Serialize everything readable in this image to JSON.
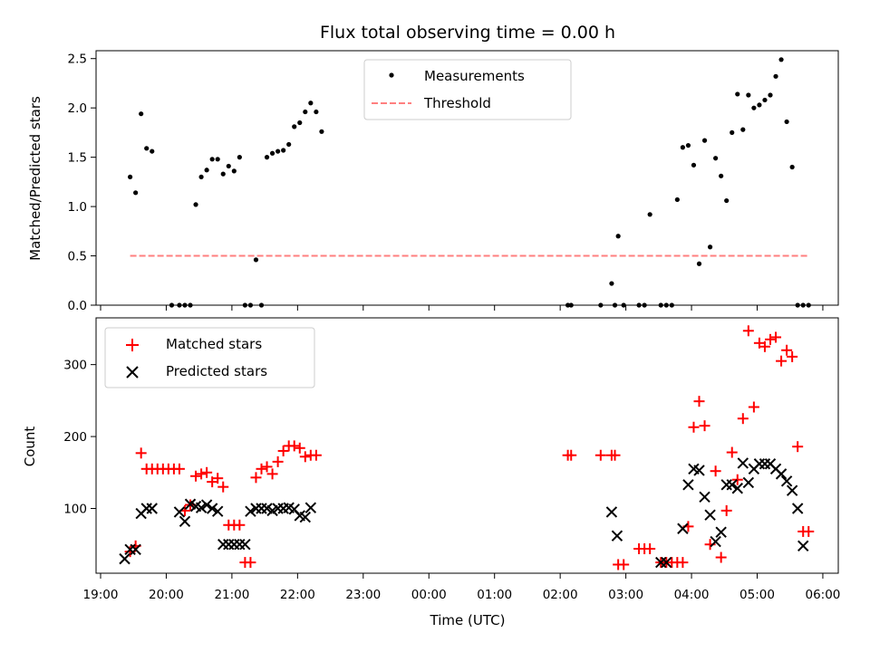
{
  "chart_data": [
    {
      "type": "scatter",
      "title": "Flux total observing time = 0.00 h",
      "xlabel": "",
      "ylabel": "Matched/Predicted stars",
      "ylim": [
        0,
        2.58
      ],
      "yticks": [
        "0.0",
        "0.5",
        "1.0",
        "1.5",
        "2.0",
        "2.5"
      ],
      "ytick_values": [
        0,
        0.5,
        1.0,
        1.5,
        2.0,
        2.5
      ],
      "legend_position": "upper center",
      "series": [
        {
          "name": "Measurements",
          "marker": "dot",
          "color": "#000000",
          "x": [
            "19:27",
            "19:32",
            "19:37",
            "19:42",
            "19:47",
            "20:05",
            "20:12",
            "20:17",
            "20:22",
            "20:27",
            "20:32",
            "20:37",
            "20:42",
            "20:47",
            "20:52",
            "20:57",
            "21:02",
            "21:07",
            "21:12",
            "21:17",
            "21:22",
            "21:27",
            "21:32",
            "21:37",
            "21:42",
            "21:47",
            "21:52",
            "21:57",
            "22:02",
            "22:07",
            "22:12",
            "22:17",
            "22:22",
            "02:07",
            "02:10",
            "02:37",
            "02:47",
            "02:50",
            "02:53",
            "02:58",
            "03:12",
            "03:17",
            "03:22",
            "03:32",
            "03:37",
            "03:42",
            "03:47",
            "03:52",
            "03:57",
            "04:02",
            "04:07",
            "04:12",
            "04:17",
            "04:22",
            "04:27",
            "04:32",
            "04:37",
            "04:42",
            "04:47",
            "04:52",
            "04:57",
            "05:02",
            "05:07",
            "05:12",
            "05:17",
            "05:22",
            "05:27",
            "05:32",
            "05:37",
            "05:42",
            "05:47"
          ],
          "y": [
            1.3,
            1.14,
            1.94,
            1.59,
            1.56,
            0.0,
            0.0,
            0.0,
            0.0,
            1.02,
            1.3,
            1.37,
            1.48,
            1.48,
            1.33,
            1.41,
            1.36,
            1.5,
            0.0,
            0.0,
            0.46,
            0.0,
            1.5,
            1.54,
            1.56,
            1.57,
            1.63,
            1.81,
            1.85,
            1.96,
            2.05,
            1.96,
            1.76,
            0.0,
            0.0,
            0.0,
            0.22,
            0.0,
            0.7,
            0.0,
            0.0,
            0.0,
            0.92,
            0.0,
            0.0,
            0.0,
            1.07,
            1.6,
            1.62,
            1.42,
            0.42,
            1.67,
            0.59,
            1.49,
            1.31,
            1.06,
            1.75,
            2.14,
            1.78,
            2.13,
            2.0,
            2.03,
            2.08,
            2.13,
            2.32,
            2.49,
            1.86,
            1.4,
            0.0,
            0.0,
            0.0
          ]
        },
        {
          "name": "Threshold",
          "marker": "dashed-line",
          "color": "#ff7f7f",
          "x": [
            "19:27",
            "05:47"
          ],
          "y": [
            0.5,
            0.5
          ]
        }
      ]
    },
    {
      "type": "scatter",
      "title": "",
      "xlabel": "Time (UTC)",
      "ylabel": "Count",
      "ylim": [
        10,
        365
      ],
      "yticks": [
        "100",
        "200",
        "300"
      ],
      "ytick_values": [
        100,
        200,
        300
      ],
      "xticks": [
        "19:00",
        "20:00",
        "21:00",
        "22:00",
        "23:00",
        "00:00",
        "01:00",
        "02:00",
        "03:00",
        "04:00",
        "05:00",
        "06:00"
      ],
      "legend_position": "upper left",
      "series": [
        {
          "name": "Matched stars",
          "marker": "plus",
          "color": "#ff0000",
          "x": [
            "19:27",
            "19:32",
            "19:37",
            "19:42",
            "19:47",
            "19:52",
            "19:57",
            "20:02",
            "20:07",
            "20:12",
            "20:17",
            "20:22",
            "20:27",
            "20:32",
            "20:37",
            "20:42",
            "20:47",
            "20:52",
            "20:57",
            "21:02",
            "21:07",
            "21:12",
            "21:17",
            "21:22",
            "21:27",
            "21:32",
            "21:37",
            "21:42",
            "21:47",
            "21:52",
            "21:57",
            "22:02",
            "22:07",
            "22:12",
            "22:17",
            "02:07",
            "02:10",
            "02:37",
            "02:47",
            "02:50",
            "02:53",
            "02:58",
            "03:12",
            "03:17",
            "03:22",
            "03:32",
            "03:37",
            "03:42",
            "03:47",
            "03:52",
            "03:57",
            "04:02",
            "04:07",
            "04:12",
            "04:17",
            "04:22",
            "04:27",
            "04:32",
            "04:37",
            "04:42",
            "04:47",
            "04:52",
            "04:57",
            "05:02",
            "05:07",
            "05:12",
            "05:17",
            "05:22",
            "05:27",
            "05:32",
            "05:37",
            "05:42",
            "05:47"
          ],
          "y": [
            40,
            48,
            177,
            155,
            155,
            155,
            155,
            155,
            155,
            155,
            97,
            105,
            145,
            148,
            150,
            137,
            142,
            130,
            77,
            77,
            77,
            25,
            25,
            143,
            155,
            158,
            148,
            165,
            180,
            187,
            187,
            184,
            172,
            174,
            174,
            174,
            174,
            174,
            174,
            174,
            22,
            22,
            44,
            44,
            44,
            25,
            25,
            25,
            25,
            25,
            75,
            213,
            249,
            215,
            50,
            152,
            32,
            97,
            178,
            140,
            225,
            347,
            241,
            330,
            325,
            335,
            338,
            305,
            320,
            311,
            186,
            68,
            68
          ]
        },
        {
          "name": "Predicted stars",
          "marker": "x",
          "color": "#000000",
          "x": [
            "19:22",
            "19:27",
            "19:32",
            "19:37",
            "19:42",
            "19:47",
            "20:12",
            "20:17",
            "20:22",
            "20:27",
            "20:32",
            "20:37",
            "20:42",
            "20:47",
            "20:52",
            "20:57",
            "21:02",
            "21:07",
            "21:12",
            "21:17",
            "21:22",
            "21:27",
            "21:32",
            "21:37",
            "21:42",
            "21:47",
            "21:52",
            "21:57",
            "22:02",
            "22:07",
            "22:12",
            "02:47",
            "02:52",
            "03:32",
            "03:37",
            "03:52",
            "03:57",
            "04:02",
            "04:07",
            "04:12",
            "04:17",
            "04:22",
            "04:27",
            "04:32",
            "04:37",
            "04:42",
            "04:47",
            "04:52",
            "04:57",
            "05:02",
            "05:07",
            "05:12",
            "05:17",
            "05:22",
            "05:27",
            "05:32",
            "05:37",
            "05:42"
          ],
          "y": [
            30,
            43,
            43,
            93,
            100,
            100,
            95,
            82,
            106,
            103,
            101,
            105,
            100,
            96,
            50,
            50,
            50,
            50,
            50,
            96,
            100,
            100,
            100,
            97,
            100,
            100,
            101,
            99,
            90,
            88,
            101,
            95,
            62,
            25,
            25,
            72,
            133,
            155,
            153,
            116,
            91,
            54,
            67,
            133,
            133,
            128,
            163,
            136,
            155,
            162,
            162,
            162,
            155,
            148,
            138,
            125,
            100,
            48
          ]
        }
      ]
    }
  ]
}
